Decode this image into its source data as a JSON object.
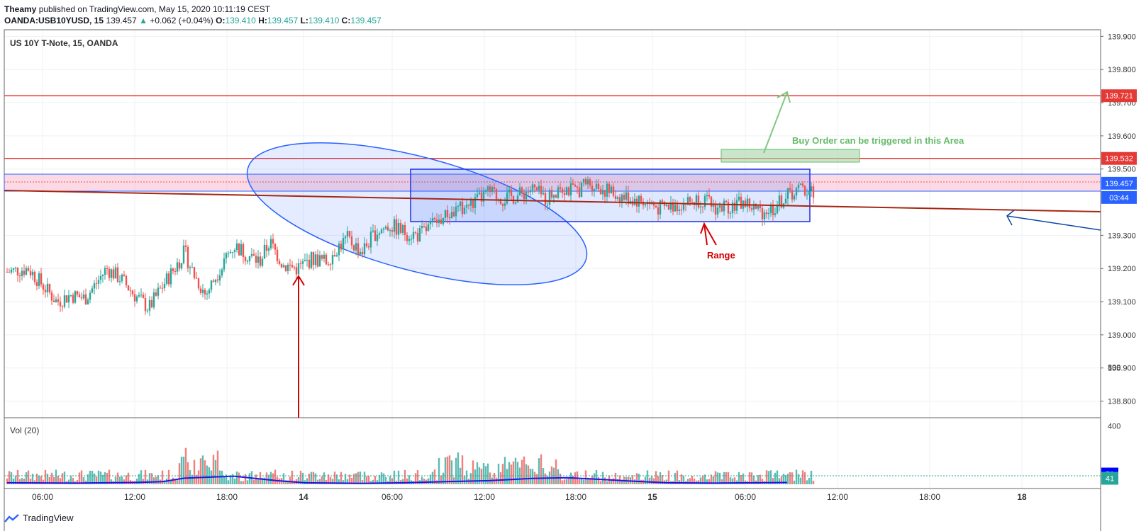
{
  "header": {
    "author": "Theamy",
    "published_text": "published on TradingView.com, May 15, 2020 10:11:19 CEST",
    "symbol": "OANDA:USB10YUSD, 15",
    "last": "139.457",
    "change": "+0.062 (+0.04%)",
    "o_label": "O:",
    "o": "139.410",
    "h_label": "H:",
    "h": "139.457",
    "l_label": "L:",
    "l": "139.410",
    "c_label": "C:",
    "c": "139.457"
  },
  "footer": {
    "brand": "TradingView",
    "logo_icon": "tradingview-logo-icon"
  },
  "colors": {
    "up": "#26a69a",
    "down": "#ef5350",
    "resistance": "#e53935",
    "trend": "#a52714",
    "ellipse": "#2962ff",
    "range_box": "#1e31e6",
    "buy_arrow": "#81c784",
    "buy_text": "#66bb6a",
    "blue_arrow": "#0d47a1",
    "vol_ma": "#1a1ae6"
  },
  "chart_data": {
    "type": "candlestick",
    "title": "US 10Y T-Note, 15, OANDA",
    "volume_label": "Vol (20)",
    "x_ticks": [
      "06:00",
      "12:00",
      "18:00",
      "14",
      "06:00",
      "12:00",
      "18:00",
      "15",
      "06:00",
      "12:00",
      "18:00",
      "18"
    ],
    "y_ticks": [
      "139.900",
      "139.800",
      "139.700",
      "139.600",
      "139.500",
      "139.300",
      "139.200",
      "139.100",
      "139.000",
      "138.900",
      "138.800"
    ],
    "ylim": [
      138.75,
      139.92
    ],
    "volume_ticks": [
      "800",
      "400"
    ],
    "volume_ylim": [
      0,
      1000
    ],
    "price_labels": [
      {
        "text": "139.721",
        "value": 139.721,
        "color": "#e53935"
      },
      {
        "text": "139.532",
        "value": 139.532,
        "color": "#e53935"
      },
      {
        "text": "139.457",
        "value": 139.457,
        "color": "#2962ff"
      },
      {
        "text": "03:44",
        "value": 139.407,
        "color": "#2962ff"
      }
    ],
    "volume_labels": [
      {
        "text": "70",
        "value": 70,
        "color": "#0000ff"
      },
      {
        "text": "41",
        "value": 41,
        "color": "#26a69a"
      }
    ],
    "horizontal_lines": [
      139.721,
      139.532
    ],
    "annotations": [
      {
        "text": "Buy Order can be triggered in this Area",
        "color": "#66bb6a"
      },
      {
        "text": "Range",
        "color": "#d50000"
      }
    ],
    "path_points": [
      [
        0,
        139.19
      ],
      [
        15,
        139.2
      ],
      [
        25,
        139.15
      ],
      [
        35,
        139.1
      ],
      [
        45,
        139.12
      ],
      [
        55,
        139.11
      ],
      [
        62,
        139.15
      ],
      [
        70,
        139.2
      ],
      [
        80,
        139.17
      ],
      [
        90,
        139.12
      ],
      [
        100,
        139.08
      ],
      [
        110,
        139.15
      ],
      [
        118,
        139.2
      ],
      [
        125,
        139.25
      ],
      [
        132,
        139.18
      ],
      [
        140,
        139.12
      ],
      [
        150,
        139.2
      ],
      [
        160,
        139.27
      ],
      [
        170,
        139.24
      ],
      [
        178,
        139.22
      ],
      [
        185,
        139.28
      ],
      [
        195,
        139.21
      ],
      [
        205,
        139.2
      ],
      [
        215,
        139.23
      ],
      [
        225,
        139.22
      ],
      [
        232,
        139.26
      ],
      [
        240,
        139.29
      ],
      [
        250,
        139.25
      ],
      [
        260,
        139.31
      ],
      [
        270,
        139.33
      ],
      [
        280,
        139.31
      ],
      [
        290,
        139.3
      ],
      [
        300,
        139.33
      ],
      [
        310,
        139.36
      ],
      [
        320,
        139.38
      ],
      [
        330,
        139.4
      ],
      [
        340,
        139.43
      ],
      [
        350,
        139.41
      ],
      [
        360,
        139.42
      ],
      [
        370,
        139.44
      ],
      [
        380,
        139.41
      ],
      [
        390,
        139.45
      ],
      [
        400,
        139.43
      ],
      [
        410,
        139.46
      ],
      [
        420,
        139.44
      ],
      [
        430,
        139.42
      ],
      [
        440,
        139.41
      ],
      [
        450,
        139.4
      ],
      [
        460,
        139.38
      ],
      [
        470,
        139.39
      ],
      [
        480,
        139.4
      ],
      [
        490,
        139.41
      ],
      [
        500,
        139.38
      ],
      [
        510,
        139.39
      ],
      [
        520,
        139.4
      ],
      [
        530,
        139.37
      ],
      [
        540,
        139.38
      ],
      [
        550,
        139.42
      ],
      [
        560,
        139.44
      ],
      [
        570,
        139.43
      ]
    ],
    "volume_ma_points": [
      [
        0,
        10
      ],
      [
        100,
        8
      ],
      [
        180,
        12
      ],
      [
        220,
        18
      ],
      [
        250,
        42
      ],
      [
        280,
        48
      ],
      [
        320,
        55
      ],
      [
        350,
        40
      ],
      [
        380,
        25
      ],
      [
        420,
        10
      ],
      [
        500,
        6
      ],
      [
        560,
        10
      ],
      [
        620,
        18
      ],
      [
        680,
        25
      ],
      [
        740,
        40
      ],
      [
        790,
        45
      ],
      [
        830,
        35
      ],
      [
        880,
        22
      ],
      [
        930,
        10
      ],
      [
        1000,
        8
      ],
      [
        1060,
        10
      ],
      [
        1100,
        12
      ]
    ]
  }
}
